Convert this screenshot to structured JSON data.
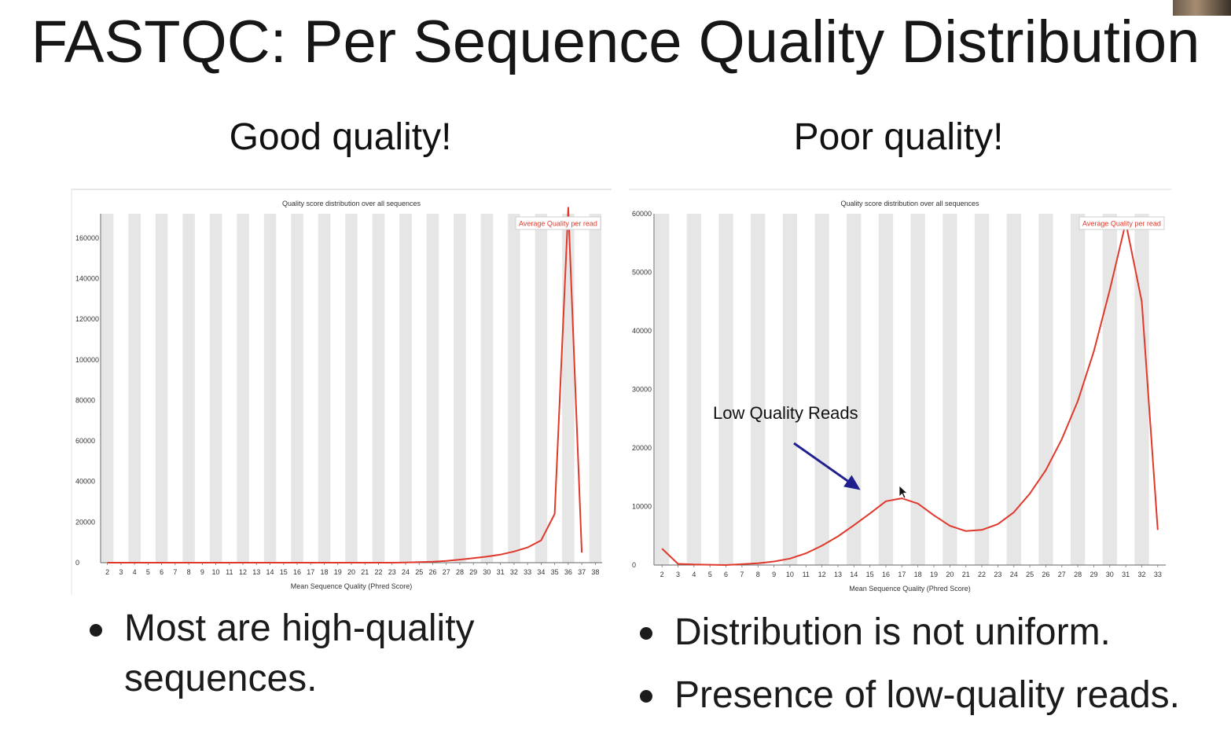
{
  "slide": {
    "title": "FASTQC: Per Sequence Quality Distribution",
    "left_heading": "Good quality!",
    "right_heading": "Poor quality!",
    "left_bullets": [
      "Most are high-quality sequences."
    ],
    "right_bullets": [
      "Distribution is not uniform.",
      "Presence of low-quality reads."
    ]
  },
  "colors": {
    "line": "#e0392b",
    "stripe": "#e6e6e6",
    "annotation_arrow": "#1f1f8f"
  },
  "chart_data": [
    {
      "type": "line",
      "title": "Quality score distribution over all sequences",
      "xlabel": "Mean Sequence Quality (Phred Score)",
      "ylabel": "",
      "legend": "Average Quality per read",
      "legend_position": "top-right",
      "grid": "alternating vertical stripes",
      "ylim": [
        0,
        172000
      ],
      "yticks": [
        0,
        20000,
        40000,
        60000,
        80000,
        100000,
        120000,
        140000,
        160000
      ],
      "categories": [
        "2",
        "3",
        "4",
        "5",
        "6",
        "7",
        "8",
        "9",
        "10",
        "11",
        "12",
        "13",
        "14",
        "15",
        "16",
        "17",
        "18",
        "19",
        "20",
        "21",
        "22",
        "23",
        "24",
        "25",
        "26",
        "27",
        "28",
        "29",
        "30",
        "31",
        "32",
        "33",
        "34",
        "35",
        "36",
        "37",
        "38"
      ],
      "series": [
        {
          "name": "Average Quality per read",
          "values": [
            0,
            0,
            0,
            0,
            0,
            0,
            0,
            0,
            0,
            0,
            0,
            0,
            0,
            0,
            0,
            0,
            0,
            0,
            0,
            0,
            0,
            0,
            100,
            300,
            500,
            900,
            1500,
            2200,
            3000,
            4000,
            5500,
            7500,
            11000,
            24000,
            175000,
            5000,
            null
          ]
        }
      ]
    },
    {
      "type": "line",
      "title": "Quality score distribution over all sequences",
      "xlabel": "Mean Sequence Quality (Phred Score)",
      "ylabel": "",
      "legend": "Average Quality per read",
      "legend_position": "top-right",
      "grid": "alternating vertical stripes",
      "ylim": [
        0,
        60000
      ],
      "yticks": [
        0,
        10000,
        20000,
        30000,
        40000,
        50000,
        60000
      ],
      "annotation": {
        "text": "Low Quality Reads",
        "points_to_category": "15"
      },
      "categories": [
        "2",
        "3",
        "4",
        "5",
        "6",
        "7",
        "8",
        "9",
        "10",
        "11",
        "12",
        "13",
        "14",
        "15",
        "16",
        "17",
        "18",
        "19",
        "20",
        "21",
        "22",
        "23",
        "24",
        "25",
        "26",
        "27",
        "28",
        "29",
        "30",
        "31",
        "32",
        "33"
      ],
      "series": [
        {
          "name": "Average Quality per read",
          "values": [
            2800,
            200,
            100,
            50,
            0,
            150,
            300,
            600,
            1100,
            2000,
            3300,
            4900,
            6800,
            8800,
            10900,
            11400,
            10500,
            8500,
            6700,
            5800,
            6000,
            7000,
            9000,
            12200,
            16200,
            21500,
            28000,
            36500,
            47000,
            58500,
            45000,
            6000
          ]
        }
      ]
    }
  ]
}
